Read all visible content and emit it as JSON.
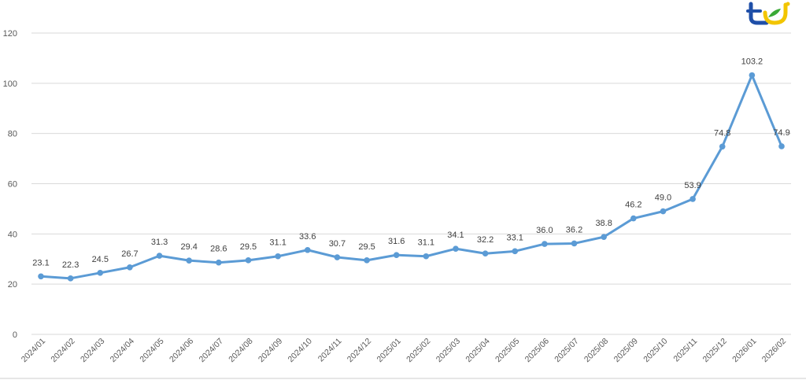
{
  "chart_data": {
    "type": "line",
    "title": "",
    "xlabel": "",
    "ylabel": "",
    "ylim": [
      0,
      120
    ],
    "yticks": [
      0,
      20,
      40,
      60,
      80,
      100,
      120
    ],
    "grid": true,
    "legend": null,
    "categories": [
      "2024/01",
      "2024/02",
      "2024/03",
      "2024/04",
      "2024/05",
      "2024/06",
      "2024/07",
      "2024/08",
      "2024/09",
      "2024/10",
      "2024/11",
      "2024/12",
      "2025/01",
      "2025/02",
      "2025/03",
      "2025/04",
      "2025/05",
      "2025/06",
      "2025/07",
      "2025/08",
      "2025/09",
      "2025/10",
      "2025/11",
      "2025/12",
      "2026/01",
      "2026/02"
    ],
    "series": [
      {
        "name": "value",
        "color": "#5b9bd5",
        "values": [
          23.1,
          22.3,
          24.5,
          26.7,
          31.3,
          29.4,
          28.6,
          29.5,
          31.1,
          33.6,
          30.7,
          29.5,
          31.6,
          31.1,
          34.1,
          32.2,
          33.1,
          36.0,
          36.2,
          38.8,
          46.2,
          49.0,
          53.9,
          74.8,
          103.2,
          74.9
        ],
        "labels": [
          "23.1",
          "22.3",
          "24.5",
          "26.7",
          "31.3",
          "29.4",
          "28.6",
          "29.5",
          "31.1",
          "33.6",
          "30.7",
          "29.5",
          "31.6",
          "31.1",
          "34.1",
          "32.2",
          "33.1",
          "36.0",
          "36.2",
          "38.8",
          "46.2",
          "49.0",
          "53.9",
          "74.8",
          "103.2",
          "74.9"
        ]
      }
    ]
  },
  "logo": {
    "name": "ted-logo",
    "colors": {
      "blue": "#1f4fa8",
      "yellow": "#f2c500",
      "green": "#3aa935"
    }
  },
  "colors": {
    "grid": "#d9d9d9",
    "axis_text": "#595959",
    "label_text": "#404040",
    "line": "#5b9bd5"
  }
}
